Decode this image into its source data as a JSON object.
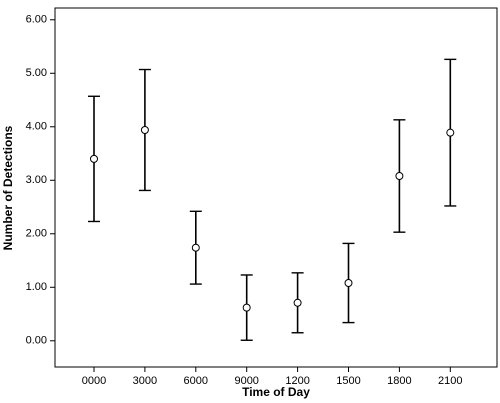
{
  "chart_data": {
    "type": "errorbar",
    "x_label": "Time of Day",
    "y_label": "Number of Detections",
    "categories": [
      "0000",
      "3000",
      "6000",
      "9000",
      "1200",
      "1500",
      "1800",
      "2100"
    ],
    "values": [
      3.4,
      3.94,
      1.74,
      0.62,
      0.71,
      1.08,
      3.08,
      3.89
    ],
    "errors": [
      1.17,
      1.13,
      0.68,
      0.61,
      0.56,
      0.74,
      1.05,
      1.37
    ],
    "color": "#000000",
    "ylim": [
      -0.49,
      6.22
    ],
    "yticks": [
      {
        "value": 0,
        "label": "0.00"
      },
      {
        "value": 1,
        "label": "1.00"
      },
      {
        "value": 2,
        "label": "2.00"
      },
      {
        "value": 3,
        "label": "3.00"
      },
      {
        "value": 4,
        "label": "4.00"
      },
      {
        "value": 5,
        "label": "5.00"
      },
      {
        "value": 6,
        "label": "6.00"
      }
    ],
    "grid": false
  }
}
